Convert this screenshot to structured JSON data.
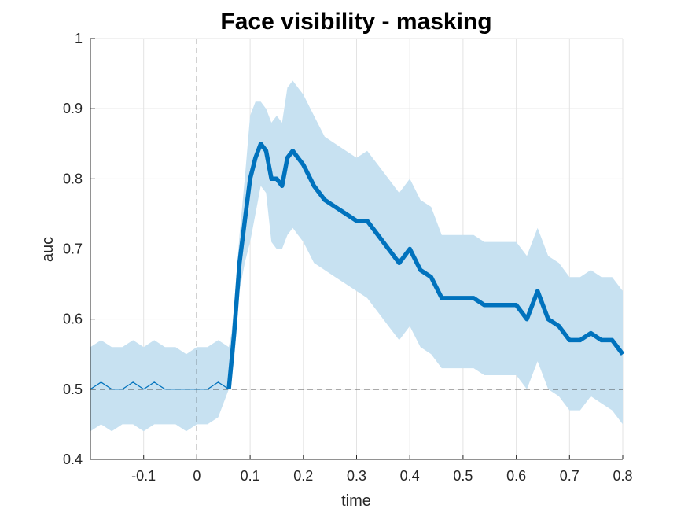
{
  "chart_data": {
    "type": "line",
    "title": "Face visibility - masking",
    "xlabel": "time",
    "ylabel": "auc",
    "xlim": [
      -0.2,
      0.8
    ],
    "ylim": [
      0.4,
      1.0
    ],
    "grid": true,
    "legend": "none",
    "xticks": [
      -0.1,
      0,
      0.1,
      0.2,
      0.3,
      0.4,
      0.5,
      0.6,
      0.7,
      0.8
    ],
    "xtick_labels": [
      "-0.1",
      "0",
      "0.1",
      "0.2",
      "0.3",
      "0.4",
      "0.5",
      "0.6",
      "0.7",
      "0.8"
    ],
    "yticks": [
      0.4,
      0.5,
      0.6,
      0.7,
      0.8,
      0.9,
      1.0
    ],
    "ytick_labels": [
      "0.4",
      "0.5",
      "0.6",
      "0.7",
      "0.8",
      "0.9",
      "1"
    ],
    "reference_lines": {
      "vertical_x": 0,
      "horizontal_y": 0.5,
      "style": "dashed"
    },
    "colors": {
      "line": "#0072bd",
      "band": "#c7e1f1",
      "reference": "#262626",
      "grid": "#e3e3e3"
    },
    "series": [
      {
        "x": [
          -0.2,
          -0.18,
          -0.16,
          -0.14,
          -0.12,
          -0.1,
          -0.08,
          -0.06,
          -0.04,
          -0.02,
          0.0,
          0.02,
          0.04,
          0.06,
          0.065,
          0.07,
          0.08,
          0.09,
          0.1,
          0.11,
          0.12,
          0.13,
          0.14,
          0.15,
          0.16,
          0.17,
          0.18,
          0.19,
          0.2,
          0.22,
          0.24,
          0.26,
          0.28,
          0.3,
          0.32,
          0.34,
          0.36,
          0.38,
          0.4,
          0.42,
          0.44,
          0.46,
          0.48,
          0.5,
          0.52,
          0.54,
          0.56,
          0.58,
          0.6,
          0.62,
          0.64,
          0.66,
          0.68,
          0.7,
          0.72,
          0.74,
          0.76,
          0.78,
          0.8
        ],
        "y": [
          0.5,
          0.51,
          0.5,
          0.5,
          0.51,
          0.5,
          0.51,
          0.5,
          0.5,
          0.5,
          0.5,
          0.5,
          0.51,
          0.5,
          0.54,
          0.58,
          0.68,
          0.74,
          0.8,
          0.83,
          0.85,
          0.84,
          0.8,
          0.8,
          0.79,
          0.83,
          0.84,
          0.83,
          0.82,
          0.79,
          0.77,
          0.76,
          0.75,
          0.74,
          0.74,
          0.72,
          0.7,
          0.68,
          0.7,
          0.67,
          0.66,
          0.63,
          0.63,
          0.63,
          0.63,
          0.62,
          0.62,
          0.62,
          0.62,
          0.6,
          0.64,
          0.6,
          0.59,
          0.57,
          0.57,
          0.58,
          0.57,
          0.57,
          0.55
        ],
        "lower": [
          0.44,
          0.45,
          0.44,
          0.45,
          0.45,
          0.44,
          0.45,
          0.45,
          0.45,
          0.44,
          0.45,
          0.45,
          0.46,
          0.5,
          0.52,
          0.54,
          0.64,
          0.68,
          0.71,
          0.75,
          0.79,
          0.78,
          0.71,
          0.7,
          0.7,
          0.72,
          0.73,
          0.72,
          0.71,
          0.68,
          0.67,
          0.66,
          0.65,
          0.64,
          0.63,
          0.61,
          0.59,
          0.57,
          0.59,
          0.56,
          0.55,
          0.53,
          0.53,
          0.53,
          0.53,
          0.52,
          0.52,
          0.52,
          0.52,
          0.5,
          0.54,
          0.5,
          0.49,
          0.47,
          0.47,
          0.49,
          0.48,
          0.47,
          0.45
        ],
        "upper": [
          0.56,
          0.57,
          0.56,
          0.56,
          0.57,
          0.56,
          0.57,
          0.56,
          0.56,
          0.55,
          0.56,
          0.56,
          0.57,
          0.56,
          0.58,
          0.62,
          0.72,
          0.8,
          0.89,
          0.91,
          0.91,
          0.9,
          0.88,
          0.89,
          0.88,
          0.93,
          0.94,
          0.93,
          0.92,
          0.89,
          0.86,
          0.85,
          0.84,
          0.83,
          0.84,
          0.82,
          0.8,
          0.78,
          0.8,
          0.77,
          0.76,
          0.72,
          0.72,
          0.72,
          0.72,
          0.71,
          0.71,
          0.71,
          0.71,
          0.69,
          0.73,
          0.69,
          0.68,
          0.66,
          0.66,
          0.67,
          0.66,
          0.66,
          0.64
        ],
        "thick_from_x": 0.06
      }
    ]
  }
}
